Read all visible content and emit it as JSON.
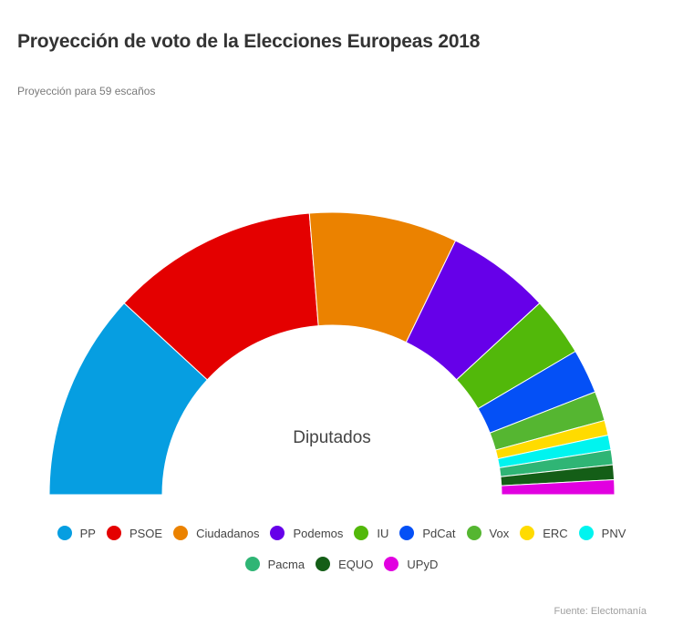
{
  "header": {
    "title": "Proyección de voto de la Elecciones Europeas 2018",
    "subtitle": "Proyección para 59 escaños"
  },
  "chart_data": {
    "type": "parliament-semicircle",
    "title": "Proyección de voto de la Elecciones Europeas 2018",
    "subtitle": "Proyección para 59 escaños",
    "center_label": "Diputados",
    "total_seats": 59,
    "categories": [
      "PP",
      "PSOE",
      "Ciudadanos",
      "Podemos",
      "IU",
      "PdCat",
      "Vox",
      "ERC",
      "PNV",
      "Pacma",
      "EQUO",
      "UPyD"
    ],
    "values": [
      14,
      14,
      10,
      7,
      4,
      3,
      2,
      1,
      1,
      1,
      1,
      1
    ],
    "colors": [
      "#069ee1",
      "#e40000",
      "#eb8200",
      "#6600e9",
      "#52b80a",
      "#0450f6",
      "#55b631",
      "#ffdb00",
      "#00f4ef",
      "#2fb575",
      "#145e17",
      "#e100e0"
    ],
    "legend_position": "bottom"
  },
  "legend": {
    "row1": [
      {
        "label": "PP",
        "color": "#069ee1"
      },
      {
        "label": "PSOE",
        "color": "#e40000"
      },
      {
        "label": "Ciudadanos",
        "color": "#eb8200"
      },
      {
        "label": "Podemos",
        "color": "#6600e9"
      },
      {
        "label": "IU",
        "color": "#52b80a"
      },
      {
        "label": "PdCat",
        "color": "#0450f6"
      },
      {
        "label": "Vox",
        "color": "#55b631"
      },
      {
        "label": "ERC",
        "color": "#ffdb00"
      },
      {
        "label": "PNV",
        "color": "#00f4ef"
      }
    ],
    "row2": [
      {
        "label": "Pacma",
        "color": "#2fb575"
      },
      {
        "label": "EQUO",
        "color": "#145e17"
      },
      {
        "label": "UPyD",
        "color": "#e100e0"
      }
    ]
  },
  "footer": {
    "source": "Fuente: Electomanía"
  }
}
